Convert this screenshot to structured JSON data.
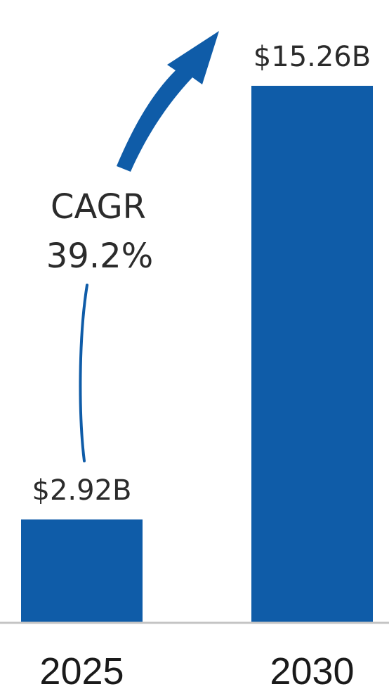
{
  "chart_data": {
    "type": "bar",
    "categories": [
      "2025",
      "2030"
    ],
    "values": [
      2.92,
      15.26
    ],
    "value_labels": [
      "$2.92B",
      "$15.26B"
    ],
    "title": "",
    "xlabel": "",
    "ylabel": "",
    "ylim": [
      0,
      16.5
    ],
    "grid": false,
    "legend": "none",
    "annotation": {
      "line1": "CAGR",
      "line2": "39.2%"
    },
    "colors": {
      "bar": "#0f5ca8",
      "arrow": "#0f5ca8",
      "axis": "#c4c4c4",
      "text": "#2b2b2b"
    }
  }
}
